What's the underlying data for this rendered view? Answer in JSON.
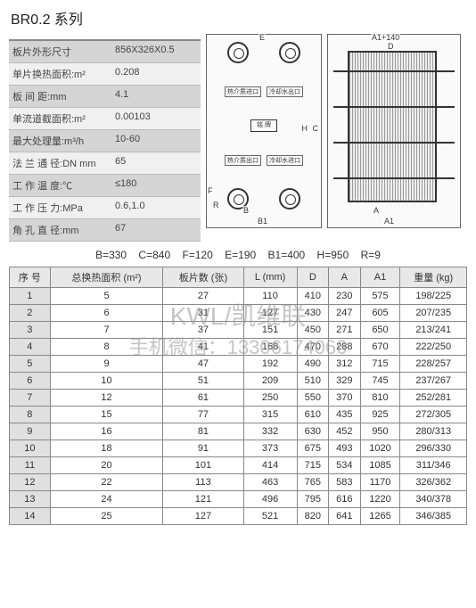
{
  "title": "BR0.2 系列",
  "specs": [
    {
      "label": "板片外形尺寸",
      "value": "856X326X0.5"
    },
    {
      "label": "单片换热面积:m²",
      "value": "0.208"
    },
    {
      "label": "板 间 距:mm",
      "value": "4.1"
    },
    {
      "label": "单流道截面积:m²",
      "value": "0.00103"
    },
    {
      "label": "最大处理量:m³/h",
      "value": "10-60"
    },
    {
      "label": "法 兰 通 径:DN mm",
      "value": "65"
    },
    {
      "label": "工 作 温 度:℃",
      "value": "≤180"
    },
    {
      "label": "工 作 压 力:MPa",
      "value": "0.6,1.0"
    },
    {
      "label": "角 孔 直 径:mm",
      "value": "67"
    }
  ],
  "diagram": {
    "nameplate": "铭 牌",
    "port_labels": [
      "热介质进口",
      "冷却水出口",
      "热介质出口",
      "冷却水进口"
    ],
    "dims_front": {
      "E": "E",
      "B": "B",
      "B1": "B1",
      "F": "F",
      "C": "C",
      "H": "H",
      "R": "R"
    },
    "dims_side": {
      "top": "A1+140",
      "D": "D",
      "L": "L",
      "A": "A",
      "A1": "A1"
    }
  },
  "dim_summary": "B=330   C=840   F=120   E=190   B1=400   H=950   R=9",
  "watermark1": "KWL/凯维联",
  "watermark2": "手机微信：13306174066",
  "table": {
    "headers": [
      "序  号",
      "总换热面积 (m²)",
      "板片数 (张)",
      "L (mm)",
      "D",
      "A",
      "A1",
      "重量 (kg)"
    ],
    "rows": [
      [
        "1",
        "5",
        "27",
        "110",
        "410",
        "230",
        "575",
        "198/225"
      ],
      [
        "2",
        "6",
        "31",
        "127",
        "430",
        "247",
        "605",
        "207/235"
      ],
      [
        "3",
        "7",
        "37",
        "151",
        "450",
        "271",
        "650",
        "213/241"
      ],
      [
        "4",
        "8",
        "41",
        "168",
        "470",
        "288",
        "670",
        "222/250"
      ],
      [
        "5",
        "9",
        "47",
        "192",
        "490",
        "312",
        "715",
        "228/257"
      ],
      [
        "6",
        "10",
        "51",
        "209",
        "510",
        "329",
        "745",
        "237/267"
      ],
      [
        "7",
        "12",
        "61",
        "250",
        "550",
        "370",
        "810",
        "252/281"
      ],
      [
        "8",
        "15",
        "77",
        "315",
        "610",
        "435",
        "925",
        "272/305"
      ],
      [
        "9",
        "16",
        "81",
        "332",
        "630",
        "452",
        "950",
        "280/313"
      ],
      [
        "10",
        "18",
        "91",
        "373",
        "675",
        "493",
        "1020",
        "296/330"
      ],
      [
        "11",
        "20",
        "101",
        "414",
        "715",
        "534",
        "1085",
        "311/346"
      ],
      [
        "12",
        "22",
        "113",
        "463",
        "765",
        "583",
        "1170",
        "326/362"
      ],
      [
        "13",
        "24",
        "121",
        "496",
        "795",
        "616",
        "1220",
        "340/378"
      ],
      [
        "14",
        "25",
        "127",
        "521",
        "820",
        "641",
        "1265",
        "346/385"
      ]
    ]
  }
}
